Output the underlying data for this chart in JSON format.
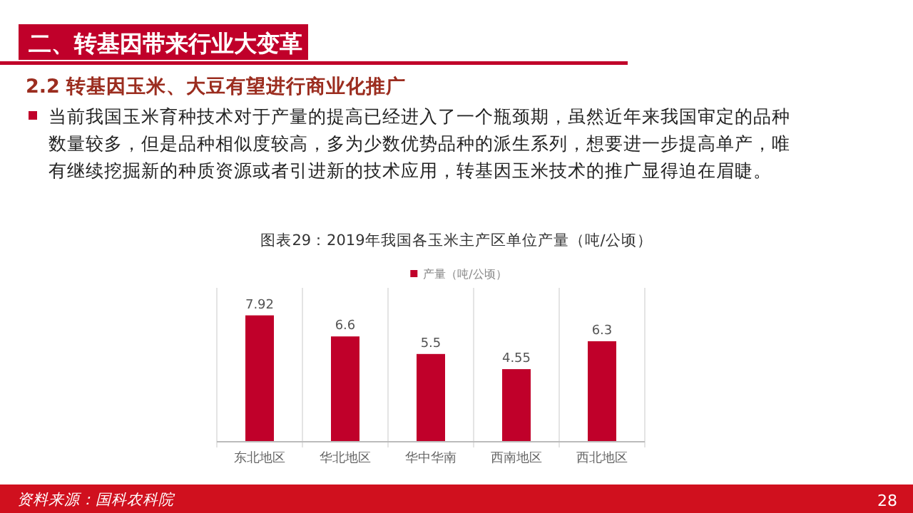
{
  "chart_data": {
    "type": "bar",
    "title": "图表29：2019年我国各玉米主产区单位产量（吨/公顷）",
    "categories": [
      "东北地区",
      "华北地区",
      "华中华南",
      "西南地区",
      "西北地区"
    ],
    "series": [
      {
        "name": "产量（吨/公顷）",
        "color": "#c0002a",
        "values": [
          7.92,
          6.6,
          5.5,
          4.55,
          6.3
        ]
      }
    ],
    "data_labels": true,
    "legend": "top",
    "annotations": [
      "二、转基因带来行业大变革",
      "2.2 转基因玉米、大豆有望进行商业化推广",
      "当前我国玉米育种技术对于产量的提高已经进入了一个瓶颈期，虽然近年来我国审定的品种数量较多，但是品种相似度较高，多为少数优势品种的派生系列，想要进一步提高单产，唯有继续挖掘新的种质资源或者引进新的技术应用，转基因玉米技术的推广显得迫在眉睫。",
      "资料来源：国科农科院",
      "28"
    ]
  }
}
